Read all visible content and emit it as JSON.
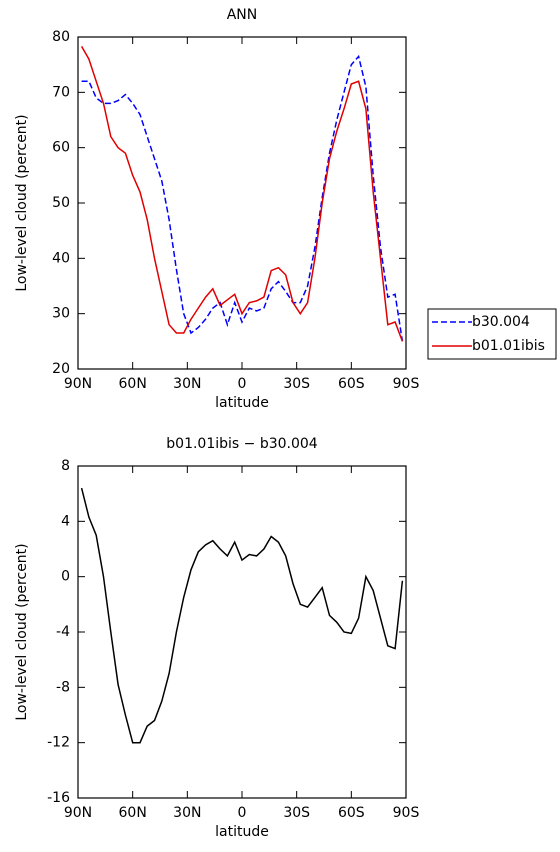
{
  "chart_data": [
    {
      "type": "line",
      "title": "ANN",
      "xlabel": "latitude",
      "ylabel": "Low-level cloud (percent)",
      "x": [
        88,
        84,
        80,
        76,
        72,
        68,
        64,
        60,
        56,
        52,
        48,
        44,
        40,
        36,
        32,
        28,
        24,
        20,
        16,
        12,
        8,
        4,
        0,
        -4,
        -8,
        -12,
        -16,
        -20,
        -24,
        -28,
        -32,
        -36,
        -40,
        -44,
        -48,
        -52,
        -56,
        -60,
        -64,
        -68,
        -72,
        -76,
        -80,
        -84,
        -88
      ],
      "series": [
        {
          "name": "b30.004",
          "color": "#0000ff",
          "line_style": "dashed",
          "values": [
            72,
            72,
            69,
            68,
            68,
            68.5,
            69.6,
            68,
            66,
            62,
            58,
            54,
            47,
            38,
            30,
            26.5,
            27.5,
            29,
            31,
            32,
            28,
            32,
            28.5,
            31,
            30.5,
            31,
            34.5,
            35.8,
            34,
            32,
            32,
            35,
            42,
            51,
            59,
            65,
            70,
            75,
            76.5,
            71,
            55,
            42,
            33,
            33.5,
            25
          ]
        },
        {
          "name": "b01.01ibis",
          "color": "#e00000",
          "line_style": "solid",
          "values": [
            78.3,
            76,
            72,
            68,
            62,
            60,
            59,
            55,
            52,
            47,
            40,
            34,
            28,
            26.5,
            26.5,
            29,
            31,
            33,
            34.5,
            31.5,
            32.5,
            33.5,
            30,
            32,
            32.3,
            33,
            37.8,
            38.3,
            37,
            32,
            30,
            32,
            40,
            50,
            58,
            63,
            67,
            71.5,
            72,
            67,
            52,
            40,
            28,
            28.5,
            25
          ]
        }
      ],
      "xlim": [
        90,
        -90
      ],
      "xticks": [
        {
          "value": 90,
          "label": "90N"
        },
        {
          "value": 60,
          "label": "60N"
        },
        {
          "value": 30,
          "label": "30N"
        },
        0,
        {
          "value": -30,
          "label": "30S"
        },
        {
          "value": -60,
          "label": "60S"
        },
        {
          "value": -90,
          "label": "90S"
        }
      ],
      "ylim": [
        20,
        80
      ],
      "yticks": [
        20,
        30,
        40,
        50,
        60,
        70,
        80
      ],
      "legend": "right"
    },
    {
      "type": "line",
      "title": "b01.01ibis − b30.004",
      "xlabel": "latitude",
      "ylabel": "Low-level cloud (percent)",
      "x": [
        88,
        84,
        80,
        76,
        72,
        68,
        64,
        60,
        56,
        52,
        48,
        44,
        40,
        36,
        32,
        28,
        24,
        20,
        16,
        12,
        8,
        4,
        0,
        -4,
        -8,
        -12,
        -16,
        -20,
        -24,
        -28,
        -32,
        -36,
        -40,
        -44,
        -48,
        -52,
        -56,
        -60,
        -64,
        -68,
        -72,
        -76,
        -80,
        -84,
        -88
      ],
      "series": [
        {
          "color": "#000000",
          "line_style": "solid",
          "values": [
            6.4,
            4.3,
            3,
            0,
            -4,
            -7.8,
            -10,
            -12,
            -12,
            -10.8,
            -10.4,
            -9,
            -7,
            -4,
            -1.5,
            0.5,
            1.8,
            2.3,
            2.6,
            2,
            1.5,
            2.5,
            1.2,
            1.6,
            1.5,
            2,
            2.9,
            2.5,
            1.5,
            -0.5,
            -2,
            -2.2,
            -1.5,
            -0.8,
            -2.8,
            -3.3,
            -4,
            -4.1,
            -3,
            0,
            -1,
            -3,
            -5,
            -5.2,
            -0.3
          ]
        }
      ],
      "xlim": [
        90,
        -90
      ],
      "xticks": [
        {
          "value": 90,
          "label": "90N"
        },
        {
          "value": 60,
          "label": "60N"
        },
        {
          "value": 30,
          "label": "30N"
        },
        0,
        {
          "value": -30,
          "label": "30S"
        },
        {
          "value": -60,
          "label": "60S"
        },
        {
          "value": -90,
          "label": "90S"
        }
      ],
      "ylim": [
        -16,
        8
      ],
      "yticks": [
        -16,
        -12,
        -8,
        -4,
        0,
        4,
        8
      ]
    }
  ]
}
